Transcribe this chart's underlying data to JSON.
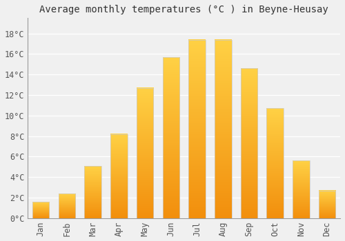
{
  "months": [
    "Jan",
    "Feb",
    "Mar",
    "Apr",
    "May",
    "Jun",
    "Jul",
    "Aug",
    "Sep",
    "Oct",
    "Nov",
    "Dec"
  ],
  "temperatures": [
    1.6,
    2.4,
    5.1,
    8.2,
    12.7,
    15.7,
    17.4,
    17.4,
    14.6,
    10.7,
    5.6,
    2.7
  ],
  "bar_color_bottom": "#FFCC44",
  "bar_color_top": "#F0900A",
  "bar_edge_color": "#CCCCCC",
  "background_color": "#F0F0F0",
  "plot_bg_color": "#F0F0F0",
  "grid_color": "#FFFFFF",
  "title": "Average monthly temperatures (°C ) in Beyne-Heusay",
  "title_fontsize": 10,
  "ytick_labels": [
    "0°C",
    "2°C",
    "4°C",
    "6°C",
    "8°C",
    "10°C",
    "12°C",
    "14°C",
    "16°C",
    "18°C"
  ],
  "yticks": [
    0,
    2,
    4,
    6,
    8,
    10,
    12,
    14,
    16,
    18
  ],
  "ylim": [
    0,
    19.5
  ],
  "tick_fontsize": 8.5,
  "bar_width": 0.65,
  "font_family": "monospace"
}
